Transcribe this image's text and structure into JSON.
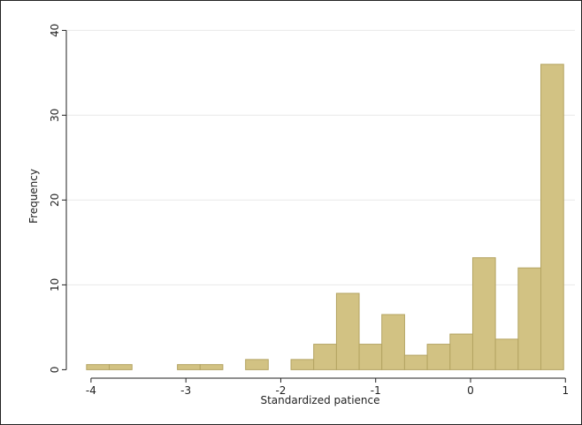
{
  "chart_data": {
    "type": "histogram",
    "xlabel": "Standardized patience",
    "ylabel": "Frequency",
    "bins": [
      -4.047,
      -3.808,
      -3.568,
      -3.329,
      -3.089,
      -2.85,
      -2.611,
      -2.371,
      -2.132,
      -1.892,
      -1.653,
      -1.413,
      -1.174,
      -0.935,
      -0.695,
      -0.456,
      -0.216,
      0.023,
      0.262,
      0.502,
      0.741,
      0.981
    ],
    "values": [
      0.6,
      0.6,
      0,
      0,
      0.6,
      0.6,
      0,
      1.2,
      0,
      1.2,
      3,
      9,
      3,
      6.5,
      1.7,
      3,
      4.2,
      13.2,
      3.6,
      12,
      36
    ],
    "color": "#d2c283",
    "xlim": [
      -4.26,
      1.1
    ],
    "ylim": [
      -1,
      41.5
    ],
    "xticks": [
      -4,
      -3,
      -2,
      -1,
      0,
      1
    ],
    "yticks": [
      0,
      10,
      20,
      30,
      40
    ],
    "grid": true
  }
}
